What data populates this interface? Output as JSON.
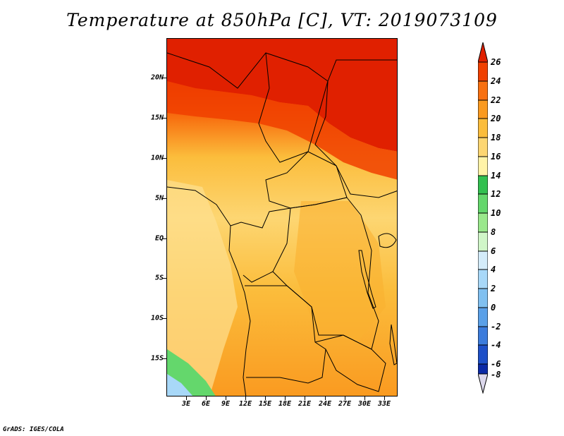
{
  "title": "Temperature at 850hPa [C], VT: 2019073109",
  "credit": "GrADS: IGES/COLA",
  "map": {
    "lat_labels": [
      "20N",
      "15N",
      "10N",
      "5N",
      "EQ",
      "5S",
      "10S",
      "15S"
    ],
    "lon_labels": [
      "3E",
      "6E",
      "9E",
      "12E",
      "15E",
      "18E",
      "21E",
      "24E",
      "27E",
      "30E",
      "33E"
    ]
  },
  "colorbar": {
    "labels": [
      "26",
      "24",
      "22",
      "20",
      "18",
      "16",
      "14",
      "12",
      "10",
      "8",
      "6",
      "4",
      "2",
      "0",
      "-2",
      "-4",
      "-6",
      "-8"
    ],
    "colors": [
      "#e02000",
      "#f04000",
      "#f87010",
      "#fa9a20",
      "#fbbd3c",
      "#fdd672",
      "#fff3a8",
      "#32c050",
      "#64d76c",
      "#9ae88c",
      "#d0f6c8",
      "#d4ecfa",
      "#a8d8f8",
      "#80c0f0",
      "#5aa0e8",
      "#3c7cdc",
      "#1e50c8",
      "#0c2aa6",
      "#0a0a78",
      "#dcd8ec"
    ]
  }
}
